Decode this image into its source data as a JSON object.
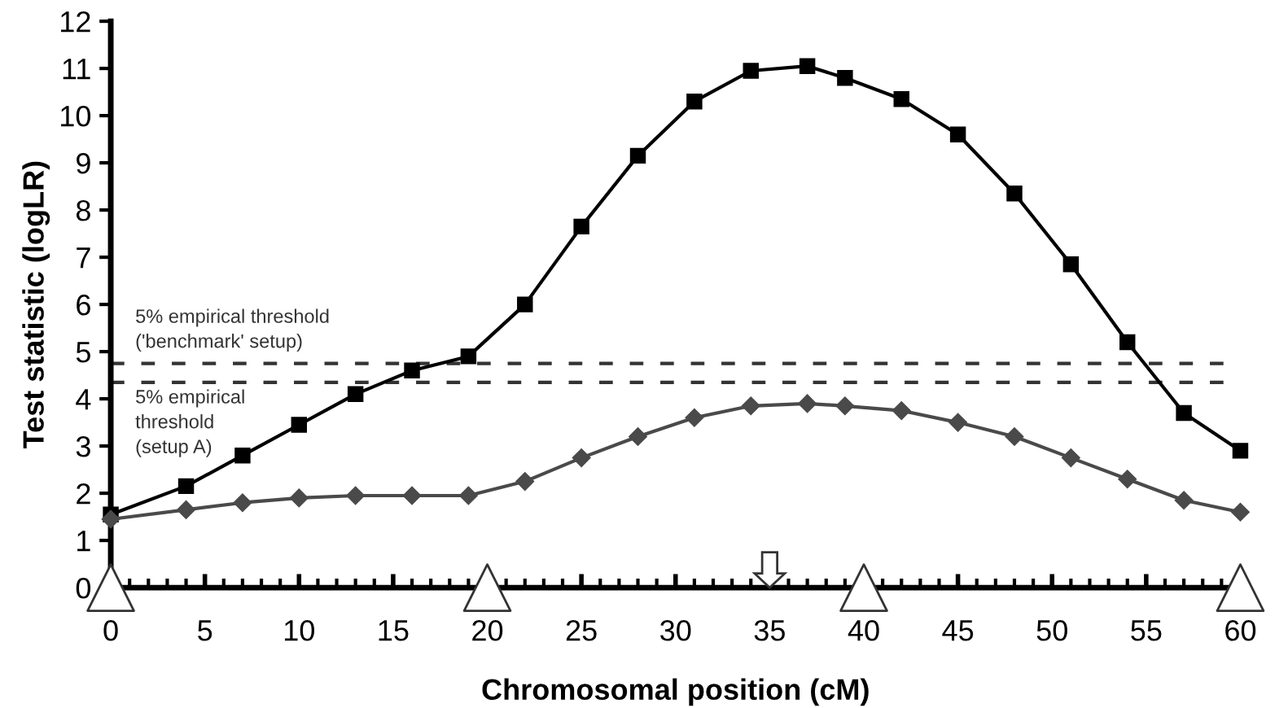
{
  "chart_data": {
    "type": "line",
    "xlabel": "Chromosomal position (cM)",
    "ylabel": "Test statistic (logLR)",
    "xlim": [
      0,
      60
    ],
    "xticks": [
      0,
      5,
      10,
      15,
      20,
      25,
      30,
      35,
      40,
      45,
      50,
      55,
      60
    ],
    "ylim": [
      0,
      12
    ],
    "yticks": [
      0,
      1,
      2,
      3,
      4,
      5,
      6,
      7,
      8,
      9,
      10,
      11,
      12
    ],
    "grid": false,
    "line_style": "solid",
    "series": [
      {
        "marker": "square",
        "color": "#000000",
        "x": [
          0,
          4,
          7,
          10,
          13,
          16,
          19,
          22,
          25,
          28,
          31,
          34,
          37,
          39,
          42,
          45,
          48,
          51,
          54,
          57,
          60
        ],
        "values": [
          1.55,
          2.15,
          2.8,
          3.45,
          4.1,
          4.6,
          4.9,
          6.0,
          7.65,
          9.15,
          10.3,
          10.95,
          11.05,
          10.8,
          10.35,
          9.6,
          8.35,
          6.85,
          5.2,
          3.7,
          2.9
        ]
      },
      {
        "marker": "diamond",
        "color": "#4a4a4a",
        "x": [
          0,
          4,
          7,
          10,
          13,
          16,
          19,
          22,
          25,
          28,
          31,
          34,
          37,
          39,
          42,
          45,
          48,
          51,
          54,
          57,
          60
        ],
        "values": [
          1.45,
          1.65,
          1.8,
          1.9,
          1.95,
          1.95,
          1.95,
          2.25,
          2.75,
          3.2,
          3.6,
          3.85,
          3.9,
          3.85,
          3.75,
          3.5,
          3.2,
          2.75,
          2.3,
          1.85,
          1.6
        ]
      }
    ],
    "ref_lines": [
      {
        "axis": "y",
        "value": 4.75,
        "label": "5% empirical threshold\n('benchmark' setup)",
        "color": "#333333",
        "line_style": "dashed"
      },
      {
        "axis": "y",
        "value": 4.35,
        "label": "5% empirical\nthreshold\n(setup A)",
        "color": "#333333",
        "line_style": "dashed"
      }
    ]
  }
}
